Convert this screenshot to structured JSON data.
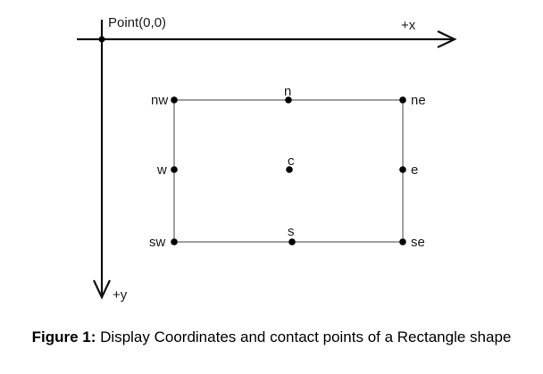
{
  "origin_label": "Point(0,0)",
  "axes": {
    "x_label": "+x",
    "y_label": "+y"
  },
  "points": {
    "nw": "nw",
    "n": "n",
    "ne": "ne",
    "w": "w",
    "c": "c",
    "e": "e",
    "sw": "sw",
    "s": "s",
    "se": "se"
  },
  "caption": {
    "prefix": "Figure 1:",
    "text": "Display Coordinates and contact points of a Rectangle shape"
  }
}
